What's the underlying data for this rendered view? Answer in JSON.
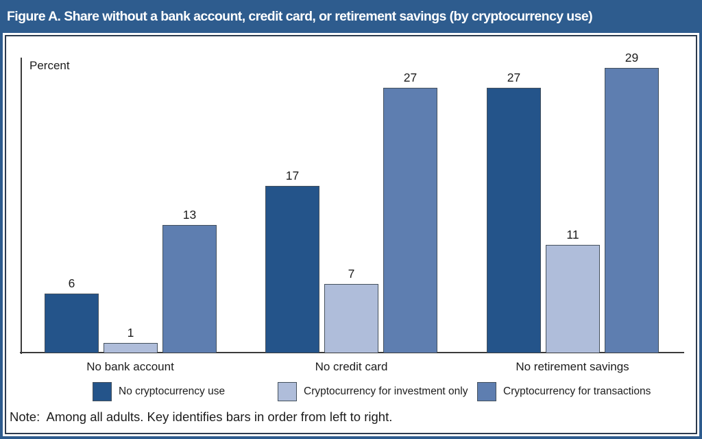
{
  "figure": {
    "title": "Figure A. Share without a bank account, credit card, or retirement savings (by cryptocurrency use)",
    "note": "Note:  Among all adults. Key identifies bars in order from left to right."
  },
  "chart_data": {
    "type": "bar",
    "title": "Share without a bank account, credit card, or retirement savings (by cryptocurrency use)",
    "unit_label": "Percent",
    "xlabel": "",
    "ylabel": "Percent",
    "ylim": [
      0,
      30
    ],
    "grid": false,
    "legend_position": "bottom",
    "value_labels": true,
    "categories": [
      "No bank account",
      "No credit card",
      "No retirement savings"
    ],
    "series": [
      {
        "name": "No cryptocurrency use",
        "values": [
          6,
          17,
          27
        ],
        "color": "#24548A"
      },
      {
        "name": "Cryptocurrency for investment only",
        "values": [
          1,
          7,
          11
        ],
        "color": "#AFBDDA"
      },
      {
        "name": "Cryptocurrency for transactions",
        "values": [
          13,
          27,
          29
        ],
        "color": "#5E7EB0"
      }
    ]
  },
  "colors": {
    "frame_blue": "#2E5C8E",
    "title_text": "#FFFFFF",
    "axis": "#3A3A3A",
    "bar_border": "#44505C",
    "panel_border": "#2B3A4D",
    "text": "#1C1C1C"
  }
}
